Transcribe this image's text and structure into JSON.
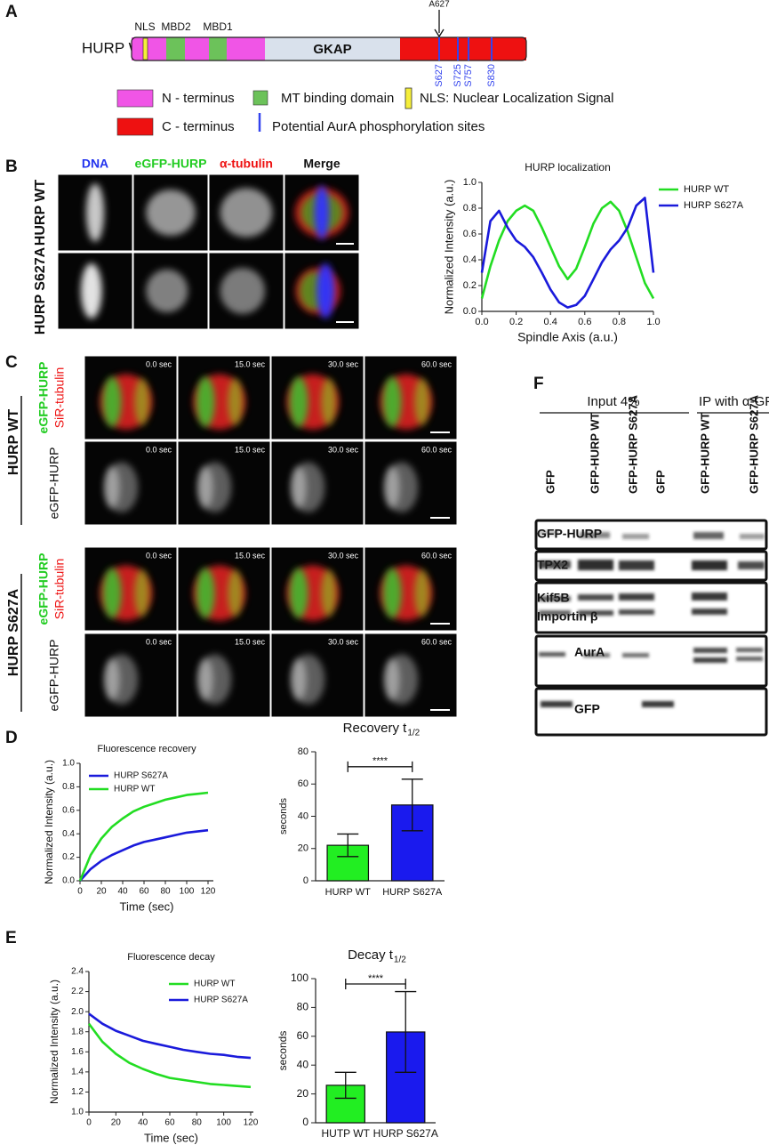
{
  "panel_a": {
    "label": "A",
    "protein": "HURP WT",
    "domains": [
      "NLS",
      "MBD2",
      "MBD1"
    ],
    "core": "GKAP",
    "mutation": "A627",
    "sites": [
      "S627",
      "S725",
      "S757",
      "S830"
    ],
    "legend": [
      "N - terminus",
      "MT binding domain",
      "NLS: Nuclear Localization Signal",
      "C - terminus",
      "Potential AurA phosphorylation sites"
    ]
  },
  "panel_b": {
    "label": "B",
    "columns": [
      "DNA",
      "eGFP-HURP",
      "α-tubulin",
      "Merge"
    ],
    "rows": [
      "HURP WT",
      "HURP S627A"
    ],
    "chart": {
      "type": "line",
      "title": "HURP localization",
      "x_label": "Spindle Axis (a.u.)",
      "y_label": "Normalized Intensity (a.u.)",
      "x": [
        0,
        0.05,
        0.1,
        0.15,
        0.2,
        0.25,
        0.3,
        0.35,
        0.4,
        0.45,
        0.5,
        0.55,
        0.6,
        0.65,
        0.7,
        0.75,
        0.8,
        0.85,
        0.9,
        0.95,
        1.0
      ],
      "series": [
        {
          "name": "HURP WT",
          "color": "#22dd22",
          "values": [
            0.1,
            0.35,
            0.55,
            0.7,
            0.78,
            0.82,
            0.78,
            0.65,
            0.5,
            0.35,
            0.25,
            0.33,
            0.5,
            0.68,
            0.8,
            0.85,
            0.78,
            0.62,
            0.42,
            0.22,
            0.1
          ]
        },
        {
          "name": "HURP S627A",
          "color": "#1a1adb",
          "values": [
            0.3,
            0.7,
            0.78,
            0.65,
            0.55,
            0.5,
            0.42,
            0.3,
            0.17,
            0.07,
            0.03,
            0.05,
            0.12,
            0.25,
            0.38,
            0.48,
            0.55,
            0.65,
            0.82,
            0.88,
            0.3
          ]
        }
      ],
      "xlim": [
        0,
        1
      ],
      "xticks": [
        {
          "value": 0,
          "label": "0.0"
        },
        {
          "value": 0.2,
          "label": "0.2"
        },
        {
          "value": 0.4,
          "label": "0.4"
        },
        {
          "value": 0.6,
          "label": "0.6"
        },
        {
          "value": 0.8,
          "label": "0.8"
        },
        {
          "value": 1,
          "label": "1.0"
        }
      ],
      "ylim": [
        0,
        1
      ],
      "yticks": [
        {
          "value": 0,
          "label": "0.0"
        },
        {
          "value": 0.2,
          "label": "0.2"
        },
        {
          "value": 0.4,
          "label": "0.4"
        },
        {
          "value": 0.6,
          "label": "0.6"
        },
        {
          "value": 0.8,
          "label": "0.8"
        },
        {
          "value": 1,
          "label": "1.0"
        }
      ],
      "legend": "outside right"
    }
  },
  "panel_c": {
    "label": "C",
    "groups": [
      "HURP WT",
      "HURP S627A"
    ],
    "channels": [
      "eGFP-HURP",
      "SiR-tubulin"
    ],
    "single": "eGFP-HURP",
    "times": [
      "0.0 sec",
      "15.0 sec",
      "30.0 sec",
      "60.0 sec"
    ]
  },
  "panel_d": {
    "label": "D",
    "line_chart": {
      "type": "line",
      "title": "Fluorescence recovery",
      "x_label": "Time (sec)",
      "y_label": "Normalized Intensity (a.u.)",
      "x": [
        0,
        10,
        20,
        30,
        40,
        50,
        60,
        70,
        80,
        90,
        100,
        110,
        120
      ],
      "series": [
        {
          "name": "HURP S627A",
          "color": "#1a1adb",
          "values": [
            0,
            0.1,
            0.17,
            0.22,
            0.26,
            0.3,
            0.33,
            0.35,
            0.37,
            0.39,
            0.41,
            0.42,
            0.43
          ]
        },
        {
          "name": "HURP WT",
          "color": "#22dd22",
          "values": [
            0,
            0.22,
            0.36,
            0.46,
            0.53,
            0.59,
            0.63,
            0.66,
            0.69,
            0.71,
            0.73,
            0.74,
            0.75
          ]
        }
      ],
      "xlim": [
        0,
        125
      ],
      "xticks": [
        0,
        20,
        40,
        60,
        80,
        100,
        120
      ],
      "ylim": [
        0,
        1
      ],
      "yticks": [
        {
          "value": 0,
          "label": "0.0"
        },
        {
          "value": 0.2,
          "label": "0.2"
        },
        {
          "value": 0.4,
          "label": "0.4"
        },
        {
          "value": 0.6,
          "label": "0.6"
        },
        {
          "value": 0.8,
          "label": "0.8"
        },
        {
          "value": 1,
          "label": "1.0"
        }
      ],
      "legend": "upper left"
    },
    "bar_chart": {
      "type": "bar",
      "title": "Recovery t",
      "title_sub": "1/2",
      "y_label": "seconds",
      "categories": [
        "HURP WT",
        "HURP S627A"
      ],
      "values": [
        22,
        47
      ],
      "errors": [
        7,
        16
      ],
      "colors": [
        "#22ee22",
        "#1a1aee"
      ],
      "ylim": [
        0,
        80
      ],
      "yticks": [
        0,
        20,
        40,
        60,
        80
      ],
      "significance": "****"
    }
  },
  "panel_e": {
    "label": "E",
    "line_chart": {
      "type": "line",
      "title": "Fluorescence decay",
      "x_label": "Time (sec)",
      "y_label": "Normalized Intensity (a.u.)",
      "x": [
        0,
        10,
        20,
        30,
        40,
        50,
        60,
        70,
        80,
        90,
        100,
        110,
        120
      ],
      "series": [
        {
          "name": "HURP WT",
          "color": "#22dd22",
          "values": [
            1.88,
            1.7,
            1.58,
            1.49,
            1.43,
            1.38,
            1.34,
            1.32,
            1.3,
            1.28,
            1.27,
            1.26,
            1.25
          ]
        },
        {
          "name": "HURP S627A",
          "color": "#1a1adb",
          "values": [
            1.98,
            1.88,
            1.81,
            1.76,
            1.71,
            1.68,
            1.65,
            1.62,
            1.6,
            1.58,
            1.57,
            1.55,
            1.54
          ]
        }
      ],
      "xlim": [
        0,
        122
      ],
      "xticks": [
        0,
        20,
        40,
        60,
        80,
        100,
        120
      ],
      "ylim": [
        1,
        2.4
      ],
      "yticks": [
        {
          "value": 1,
          "label": "1.0"
        },
        {
          "value": 1.2,
          "label": "1.2"
        },
        {
          "value": 1.4,
          "label": "1.4"
        },
        {
          "value": 1.6,
          "label": "1.6"
        },
        {
          "value": 1.8,
          "label": "1.8"
        },
        {
          "value": 2,
          "label": "2.0"
        },
        {
          "value": 2.2,
          "label": "2.2"
        },
        {
          "value": 2.4,
          "label": "2.4"
        }
      ],
      "legend": "upper right"
    },
    "bar_chart": {
      "type": "bar",
      "title": "Decay t",
      "title_sub": "1/2",
      "y_label": "seconds",
      "categories": [
        "HUTP WT",
        "HURP S627A"
      ],
      "values": [
        26,
        63
      ],
      "errors": [
        9,
        28
      ],
      "colors": [
        "#22ee22",
        "#1a1aee"
      ],
      "ylim": [
        0,
        100
      ],
      "yticks": [
        0,
        20,
        40,
        60,
        80,
        100
      ],
      "significance": "****"
    }
  },
  "panel_f": {
    "label": "F",
    "groups": [
      "Input 4%",
      "IP with α-GFP ab"
    ],
    "lanes": [
      "GFP",
      "GFP-HURP WT",
      "GFP-HURP S627A",
      "GFP",
      "GFP-HURP WT",
      "GFP-HURP S627A"
    ],
    "blots": [
      [
        "GFP-HURP"
      ],
      [
        "TPX2"
      ],
      [
        "Kif5B",
        "Importin β"
      ],
      [
        "AurA"
      ],
      [
        "GFP"
      ]
    ]
  }
}
